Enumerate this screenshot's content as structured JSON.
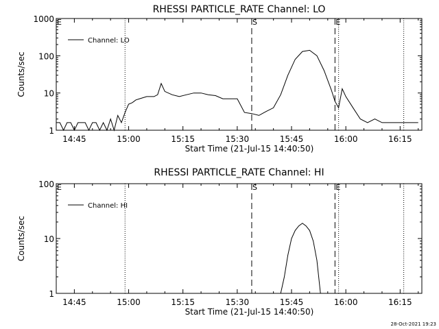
{
  "footer": {
    "timestamp": "28-Oct-2021 19:23"
  },
  "chart_data": [
    {
      "type": "line",
      "title": "RHESSI PARTICLE_RATE Channel: LO",
      "xlabel": "Start Time (21-Jul-15 14:40:50)",
      "ylabel": "Counts/sec",
      "yscale": "log",
      "ylim": [
        1,
        1000
      ],
      "yticks": [
        "1",
        "10",
        "100",
        "1000"
      ],
      "xlim": [
        "14:40",
        "16:21"
      ],
      "xticks": [
        "14:45",
        "15:00",
        "15:15",
        "15:30",
        "15:45",
        "16:00",
        "16:15"
      ],
      "legend": "top-left",
      "series": [
        {
          "name": "Channel: LO",
          "points": [
            [
              "14:40",
              1.6
            ],
            [
              "14:41",
              1.6
            ],
            [
              "14:42",
              1.0
            ],
            [
              "14:43",
              1.6
            ],
            [
              "14:44",
              1.6
            ],
            [
              "14:45",
              1.0
            ],
            [
              "14:46",
              1.6
            ],
            [
              "14:47",
              1.6
            ],
            [
              "14:48",
              1.6
            ],
            [
              "14:49",
              1.0
            ],
            [
              "14:50",
              1.6
            ],
            [
              "14:51",
              1.6
            ],
            [
              "14:52",
              1.0
            ],
            [
              "14:53",
              1.6
            ],
            [
              "14:54",
              1.0
            ],
            [
              "14:55",
              2.0
            ],
            [
              "14:56",
              1.0
            ],
            [
              "14:57",
              2.5
            ],
            [
              "14:58",
              1.6
            ],
            [
              "14:59",
              3.0
            ],
            [
              "15:00",
              5.0
            ],
            [
              "15:01",
              5.5
            ],
            [
              "15:02",
              6.5
            ],
            [
              "15:03",
              7.0
            ],
            [
              "15:04",
              7.5
            ],
            [
              "15:05",
              8.0
            ],
            [
              "15:06",
              8.0
            ],
            [
              "15:07",
              8.0
            ],
            [
              "15:08",
              9.0
            ],
            [
              "15:09",
              18.0
            ],
            [
              "15:10",
              11.0
            ],
            [
              "15:12",
              9.0
            ],
            [
              "15:14",
              8.0
            ],
            [
              "15:16",
              9.0
            ],
            [
              "15:18",
              10.0
            ],
            [
              "15:20",
              10.0
            ],
            [
              "15:22",
              9.0
            ],
            [
              "15:24",
              8.5
            ],
            [
              "15:26",
              7.0
            ],
            [
              "15:28",
              7.0
            ],
            [
              "15:30",
              7.0
            ],
            [
              "15:32",
              3.0
            ],
            [
              "15:34",
              2.8
            ],
            [
              "15:36",
              2.5
            ],
            [
              "15:38",
              3.2
            ],
            [
              "15:40",
              4.0
            ],
            [
              "15:42",
              9.0
            ],
            [
              "15:44",
              30.0
            ],
            [
              "15:46",
              80.0
            ],
            [
              "15:48",
              130.0
            ],
            [
              "15:50",
              140.0
            ],
            [
              "15:52",
              100.0
            ],
            [
              "15:54",
              40.0
            ],
            [
              "15:56",
              12.0
            ],
            [
              "15:57",
              6.0
            ],
            [
              "15:58",
              4.0
            ],
            [
              "15:59",
              13.0
            ],
            [
              "16:00",
              8.0
            ],
            [
              "16:02",
              4.0
            ],
            [
              "16:04",
              2.0
            ],
            [
              "16:06",
              1.6
            ],
            [
              "16:08",
              2.0
            ],
            [
              "16:10",
              1.6
            ],
            [
              "16:12",
              1.6
            ],
            [
              "16:14",
              1.6
            ],
            [
              "16:16",
              1.6
            ],
            [
              "16:18",
              1.6
            ],
            [
              "16:20",
              1.6
            ]
          ]
        }
      ],
      "markers": [
        {
          "label": "S",
          "time": "15:34",
          "style": "dashed"
        },
        {
          "label": "E",
          "time": "15:57",
          "style": "dashed"
        }
      ],
      "vlines_dotted": [
        "14:59",
        "15:58",
        "16:16"
      ],
      "edge_labels": [
        "E"
      ]
    },
    {
      "type": "line",
      "title": "RHESSI PARTICLE_RATE Channel: HI",
      "xlabel": "Start Time (21-Jul-15 14:40:50)",
      "ylabel": "Counts/sec",
      "yscale": "log",
      "ylim": [
        1,
        100
      ],
      "yticks": [
        "1",
        "10",
        "100"
      ],
      "xlim": [
        "14:40",
        "16:21"
      ],
      "xticks": [
        "14:45",
        "15:00",
        "15:15",
        "15:30",
        "15:45",
        "16:00",
        "16:15"
      ],
      "legend": "top-left",
      "series": [
        {
          "name": "Channel: HI",
          "points": [
            [
              "15:42",
              1.0
            ],
            [
              "15:43",
              2.0
            ],
            [
              "15:44",
              5.0
            ],
            [
              "15:45",
              10.0
            ],
            [
              "15:46",
              14.0
            ],
            [
              "15:47",
              17.0
            ],
            [
              "15:48",
              19.0
            ],
            [
              "15:49",
              17.0
            ],
            [
              "15:50",
              14.0
            ],
            [
              "15:51",
              9.0
            ],
            [
              "15:52",
              4.0
            ],
            [
              "15:53",
              1.0
            ]
          ]
        }
      ],
      "markers": [
        {
          "label": "S",
          "time": "15:34",
          "style": "dashed"
        },
        {
          "label": "E",
          "time": "15:57",
          "style": "dashed"
        }
      ],
      "vlines_dotted": [
        "14:59",
        "15:58",
        "16:16"
      ],
      "edge_labels": [
        "E"
      ]
    }
  ]
}
